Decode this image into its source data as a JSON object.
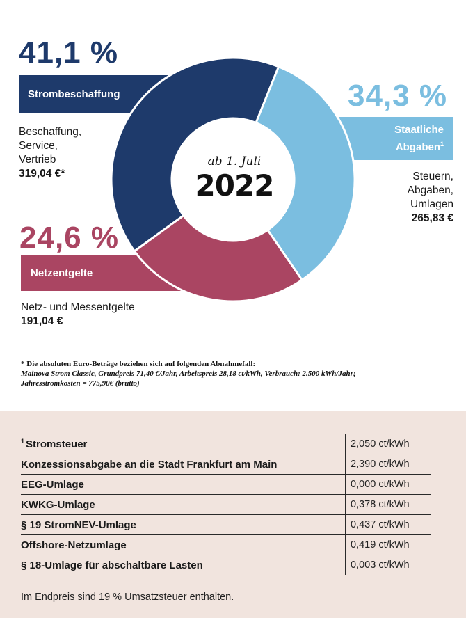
{
  "chart_data": {
    "type": "pie",
    "variant": "donut",
    "center_text": {
      "subtitle": "ab 1. Juli",
      "year": "2022"
    },
    "slices": [
      {
        "percent_label": "41,1 %",
        "value": 41.1,
        "category": "Strombeschaffung",
        "description": [
          "Beschaffung,",
          "Service,",
          "Vertrieb"
        ],
        "amount": "319,04 €*",
        "color": "#1e3a6b"
      },
      {
        "percent_label": "34,3 %",
        "value": 34.3,
        "category": "Staatliche Abgaben",
        "category_sup": "1",
        "description": [
          "Steuern,",
          "Abgaben,",
          "Umlagen"
        ],
        "amount": "265,83 €",
        "color": "#7bbee0"
      },
      {
        "percent_label": "24,6 %",
        "value": 24.6,
        "category": "Netzentgelte",
        "description": [
          "Netz- und Messentgelte"
        ],
        "amount": "191,04 €",
        "color": "#aa4562"
      }
    ]
  },
  "footnote": {
    "heading": "* Die absoluten Euro-Beträge beziehen sich auf folgenden Abnahmefall:",
    "line1": "Mainova Strom Classic, Grundpreis 71,40 €/Jahr, Arbeitspreis 28,18 ct/kWh, Verbrauch: 2.500 kWh/Jahr;",
    "line2": "Jahresstromkosten = 775,90€ (brutto)"
  },
  "fees": {
    "sup": "1",
    "rows": [
      {
        "name": "Stromsteuer",
        "value": "2,050 ct/kWh"
      },
      {
        "name": "Konzessionsabgabe an die Stadt Frankfurt am Main",
        "value": "2,390 ct/kWh"
      },
      {
        "name": "EEG-Umlage",
        "value": "0,000 ct/kWh"
      },
      {
        "name": "KWKG-Umlage",
        "value": "0,378 ct/kWh"
      },
      {
        "name": "§ 19 StromNEV-Umlage",
        "value": "0,437 ct/kWh"
      },
      {
        "name": "Offshore-Netzumlage",
        "value": "0,419 ct/kWh"
      },
      {
        "name": "§ 18-Umlage für abschaltbare Lasten",
        "value": "0,003 ct/kWh"
      }
    ],
    "vat_note": "Im Endpreis sind 19 % Umsatzsteuer enthalten."
  }
}
